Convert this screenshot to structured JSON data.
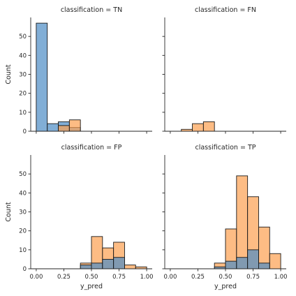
{
  "chart_data": {
    "type": "bar",
    "layout": "facet-grid-2x2",
    "facet_variable": "classification",
    "shared_x": true,
    "shared_y": true,
    "xlabel": "y_pred",
    "ylabel": "Count",
    "xlim": [
      -0.05,
      1.05
    ],
    "ylim": [
      0,
      60
    ],
    "xticks": [
      0.0,
      0.25,
      0.5,
      0.75,
      1.0
    ],
    "xtick_labels": [
      "0.00",
      "0.25",
      "0.50",
      "0.75",
      "1.00"
    ],
    "yticks": [
      0,
      10,
      20,
      30,
      40,
      50
    ],
    "yticks_labels": [
      "0",
      "10",
      "20",
      "30",
      "40",
      "50"
    ],
    "colors": {
      "blue": "#4c8cc4",
      "orange": "#fca050",
      "overlap": "#a77f5c",
      "edge": "#1a1a1a"
    },
    "facets": [
      {
        "title": "classification = TN",
        "series": [
          {
            "color": "blue",
            "bins": [
              [
                0.0,
                0.1,
                57
              ],
              [
                0.1,
                0.2,
                4
              ],
              [
                0.2,
                0.3,
                5
              ],
              [
                0.3,
                0.4,
                2
              ]
            ]
          },
          {
            "color": "orange",
            "bins": [
              [
                0.2,
                0.3,
                3
              ],
              [
                0.3,
                0.4,
                6
              ]
            ]
          }
        ]
      },
      {
        "title": "classification = FN",
        "series": [
          {
            "color": "orange",
            "bins": [
              [
                0.1,
                0.2,
                1
              ],
              [
                0.2,
                0.3,
                4
              ],
              [
                0.3,
                0.4,
                5
              ]
            ]
          }
        ]
      },
      {
        "title": "classification = FP",
        "series": [
          {
            "color": "orange",
            "bins": [
              [
                0.4,
                0.5,
                3
              ],
              [
                0.5,
                0.6,
                17
              ],
              [
                0.6,
                0.7,
                11
              ],
              [
                0.7,
                0.8,
                14
              ],
              [
                0.8,
                0.9,
                2
              ],
              [
                0.9,
                1.0,
                1
              ]
            ]
          },
          {
            "color": "blue",
            "bins": [
              [
                0.4,
                0.5,
                2
              ],
              [
                0.5,
                0.6,
                3
              ],
              [
                0.6,
                0.7,
                5
              ],
              [
                0.7,
                0.8,
                6
              ]
            ]
          }
        ]
      },
      {
        "title": "classification = TP",
        "series": [
          {
            "color": "orange",
            "bins": [
              [
                0.4,
                0.5,
                3
              ],
              [
                0.5,
                0.6,
                21
              ],
              [
                0.6,
                0.7,
                49
              ],
              [
                0.7,
                0.8,
                38
              ],
              [
                0.8,
                0.9,
                22
              ],
              [
                0.9,
                1.0,
                8
              ]
            ]
          },
          {
            "color": "blue",
            "bins": [
              [
                0.4,
                0.5,
                1
              ],
              [
                0.5,
                0.6,
                4
              ],
              [
                0.6,
                0.7,
                6
              ],
              [
                0.7,
                0.8,
                10
              ],
              [
                0.8,
                0.9,
                3
              ]
            ]
          }
        ]
      }
    ]
  }
}
